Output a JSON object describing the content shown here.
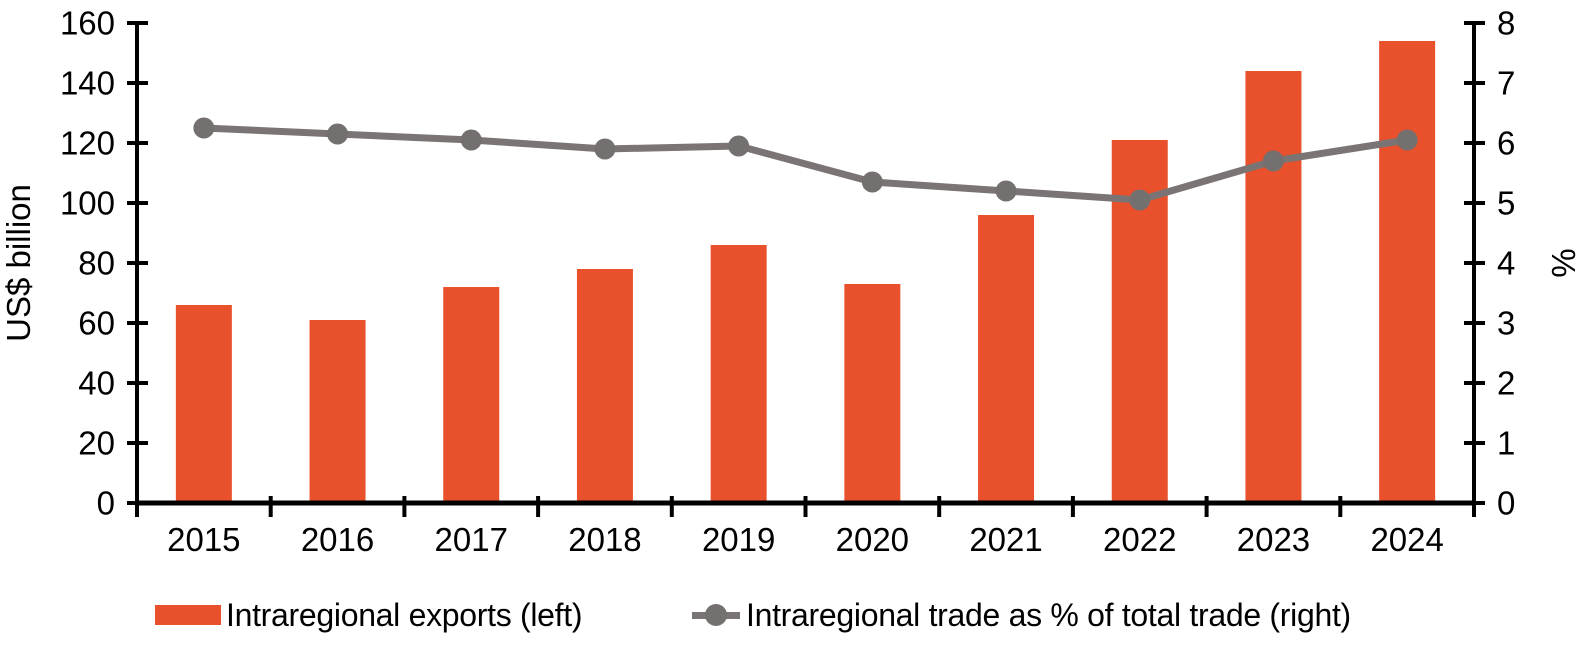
{
  "figure": {
    "left_axis_title": "US$ billion",
    "right_axis_title": "%"
  },
  "legend": {
    "exports_label": "Intraregional exports (left)",
    "share_label": "Intraregional trade as % of total trade (right)"
  },
  "colors": {
    "bar": "#E8512B",
    "line": "#7A7474",
    "marker": "#747070",
    "axis": "#000000",
    "text": "#000000",
    "background": "#FFFFFF"
  },
  "chart_data": {
    "type": "combo-bar-line",
    "categories": [
      "2015",
      "2016",
      "2017",
      "2018",
      "2019",
      "2020",
      "2021",
      "2022",
      "2023",
      "2024"
    ],
    "series": [
      {
        "name": "Intraregional exports (left)",
        "type": "bar",
        "axis": "left",
        "unit": "US$ billion",
        "values": [
          66,
          61,
          72,
          78,
          86,
          73,
          96,
          121,
          144,
          154
        ]
      },
      {
        "name": "Intraregional trade as % of total trade (right)",
        "type": "line",
        "axis": "right",
        "unit": "%",
        "values": [
          6.25,
          6.15,
          6.05,
          5.9,
          5.95,
          5.35,
          5.2,
          5.05,
          5.7,
          6.05
        ]
      }
    ],
    "left_axis": {
      "label": "US$ billion",
      "min": 0,
      "max": 160,
      "step": 20,
      "ticks": [
        0,
        20,
        40,
        60,
        80,
        100,
        120,
        140,
        160
      ]
    },
    "right_axis": {
      "label": "%",
      "min": 0,
      "max": 8,
      "step": 1,
      "ticks": [
        0,
        1,
        2,
        3,
        4,
        5,
        6,
        7,
        8
      ]
    },
    "grid": false,
    "title": "",
    "legend_position": "bottom"
  }
}
